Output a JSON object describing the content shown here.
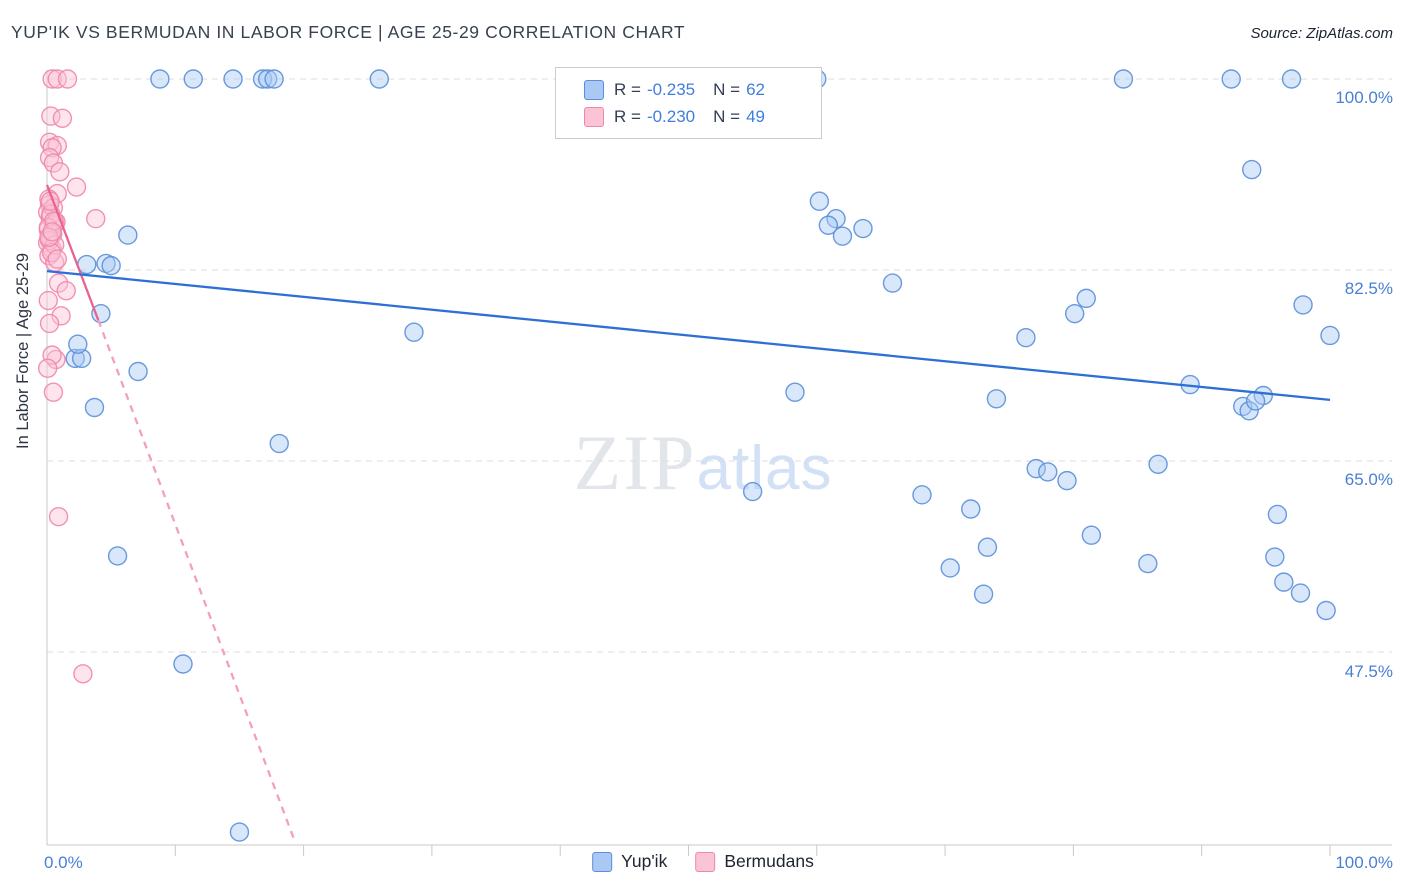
{
  "header": {
    "title": "YUP'IK VS BERMUDAN IN LABOR FORCE | AGE 25-29 CORRELATION CHART",
    "source": "Source: ZipAtlas.com"
  },
  "watermark": {
    "part1": "ZIP",
    "part2": "atlas"
  },
  "y_axis": {
    "label": "In Labor Force | Age 25-29",
    "right_tick_labels": [
      "100.0%",
      "82.5%",
      "65.0%",
      "47.5%"
    ]
  },
  "x_axis": {
    "min_label": "0.0%",
    "max_label": "100.0%"
  },
  "legend_box": {
    "rows": [
      {
        "r_label": "R =",
        "r_value": "-0.235",
        "n_label": "N =",
        "n_value": "62"
      },
      {
        "r_label": "R =",
        "r_value": "-0.230",
        "n_label": "N =",
        "n_value": "49"
      }
    ]
  },
  "bottom_legend": [
    {
      "label": "Yup'ik"
    },
    {
      "label": "Bermudans"
    }
  ],
  "chart_data": {
    "type": "scatter",
    "title": "YUP'IK VS BERMUDAN IN LABOR FORCE | AGE 25-29 CORRELATION CHART",
    "xlabel": "",
    "ylabel": "In Labor Force | Age 25-29",
    "xlim": [
      0,
      100
    ],
    "ylim": [
      28,
      102
    ],
    "gridlines_y": [
      100,
      82.5,
      65,
      47.5
    ],
    "x_ticks": [
      10,
      20,
      30,
      40,
      50,
      60,
      70,
      80,
      90,
      100
    ],
    "legend_position": "top-center",
    "series": [
      {
        "name": "Yup'ik",
        "R": -0.235,
        "N": 62,
        "color": "#5b8fd9",
        "fill": "#a9c9f4",
        "points": [
          [
            8.8,
            100
          ],
          [
            11.4,
            100
          ],
          [
            14.5,
            100
          ],
          [
            16.8,
            100
          ],
          [
            17.2,
            100
          ],
          [
            17.7,
            100
          ],
          [
            25.9,
            100
          ],
          [
            60.0,
            100
          ],
          [
            83.9,
            100
          ],
          [
            92.3,
            100
          ],
          [
            97.0,
            100
          ],
          [
            93.9,
            91.7
          ],
          [
            60.2,
            88.8
          ],
          [
            61.5,
            87.2
          ],
          [
            6.3,
            85.7
          ],
          [
            60.9,
            86.6
          ],
          [
            62.0,
            85.6
          ],
          [
            63.6,
            86.3
          ],
          [
            3.1,
            83.0
          ],
          [
            4.6,
            83.1
          ],
          [
            5.0,
            82.9
          ],
          [
            65.9,
            81.3
          ],
          [
            81.0,
            79.9
          ],
          [
            80.1,
            78.5
          ],
          [
            4.2,
            78.5
          ],
          [
            28.6,
            76.8
          ],
          [
            97.9,
            79.3
          ],
          [
            76.3,
            76.3
          ],
          [
            100,
            76.5
          ],
          [
            2.2,
            74.4
          ],
          [
            2.7,
            74.4
          ],
          [
            2.4,
            75.7
          ],
          [
            7.1,
            73.2
          ],
          [
            58.3,
            71.3
          ],
          [
            74.0,
            70.7
          ],
          [
            89.1,
            72.0
          ],
          [
            93.2,
            70.0
          ],
          [
            93.7,
            69.6
          ],
          [
            94.8,
            71.0
          ],
          [
            94.2,
            70.5
          ],
          [
            3.7,
            69.9
          ],
          [
            18.1,
            66.6
          ],
          [
            77.1,
            64.3
          ],
          [
            79.5,
            63.2
          ],
          [
            78.0,
            64.0
          ],
          [
            55.0,
            62.2
          ],
          [
            86.6,
            64.7
          ],
          [
            68.2,
            61.9
          ],
          [
            72.0,
            60.6
          ],
          [
            81.4,
            58.2
          ],
          [
            70.4,
            55.2
          ],
          [
            73.3,
            57.1
          ],
          [
            95.9,
            60.1
          ],
          [
            95.7,
            56.2
          ],
          [
            5.5,
            56.3
          ],
          [
            85.8,
            55.6
          ],
          [
            73.0,
            52.8
          ],
          [
            96.4,
            53.9
          ],
          [
            97.7,
            52.9
          ],
          [
            99.7,
            51.3
          ],
          [
            10.6,
            46.4
          ],
          [
            15.0,
            31.0
          ]
        ]
      },
      {
        "name": "Bermudans",
        "R": -0.23,
        "N": 49,
        "color": "#ef87ab",
        "fill": "#fac4d6",
        "points": [
          [
            0.4,
            100
          ],
          [
            0.8,
            100
          ],
          [
            1.6,
            100
          ],
          [
            0.3,
            96.6
          ],
          [
            1.2,
            96.4
          ],
          [
            0.2,
            94.2
          ],
          [
            0.8,
            93.9
          ],
          [
            0.4,
            93.7
          ],
          [
            0.2,
            92.8
          ],
          [
            0.5,
            92.3
          ],
          [
            1.0,
            91.5
          ],
          [
            2.3,
            90.1
          ],
          [
            0.8,
            89.5
          ],
          [
            3.8,
            87.2
          ],
          [
            0.2,
            88.5
          ],
          [
            0.05,
            87.8
          ],
          [
            0.25,
            87.3
          ],
          [
            0.6,
            86.7
          ],
          [
            0.1,
            86.2
          ],
          [
            0.3,
            85.6
          ],
          [
            0.05,
            85.0
          ],
          [
            0.4,
            84.4
          ],
          [
            0.15,
            83.8
          ],
          [
            0.6,
            83.2
          ],
          [
            0.15,
            89.0
          ],
          [
            0.5,
            88.2
          ],
          [
            0.3,
            87.6
          ],
          [
            0.7,
            86.9
          ],
          [
            0.1,
            86.4
          ],
          [
            0.45,
            85.8
          ],
          [
            0.2,
            85.2
          ],
          [
            0.6,
            84.8
          ],
          [
            0.35,
            84.1
          ],
          [
            0.8,
            83.5
          ],
          [
            0.25,
            88.8
          ],
          [
            0.55,
            87.0
          ],
          [
            0.15,
            85.5
          ],
          [
            0.4,
            86.0
          ],
          [
            0.9,
            81.3
          ],
          [
            1.5,
            80.6
          ],
          [
            0.1,
            79.7
          ],
          [
            1.1,
            78.3
          ],
          [
            0.2,
            77.6
          ],
          [
            0.7,
            74.3
          ],
          [
            0.4,
            74.7
          ],
          [
            0.05,
            73.5
          ],
          [
            0.5,
            71.3
          ],
          [
            0.9,
            59.9
          ],
          [
            2.8,
            45.5
          ]
        ]
      }
    ],
    "trend_lines": [
      {
        "series": "Bermudans",
        "x1": 0,
        "y1": 90.3,
        "x2": 4,
        "y2": 77.9,
        "style": "solid",
        "color": "#e8638f"
      },
      {
        "series": "Bermudans",
        "x1": 4,
        "y1": 77.9,
        "x2": 19.3,
        "y2": 30.2,
        "style": "dashed",
        "color": "#f2a0bc"
      },
      {
        "series": "Yup'ik",
        "x1": 0,
        "y1": 82.4,
        "x2": 100,
        "y2": 70.6,
        "style": "solid",
        "color": "#2e6fd6"
      }
    ]
  }
}
